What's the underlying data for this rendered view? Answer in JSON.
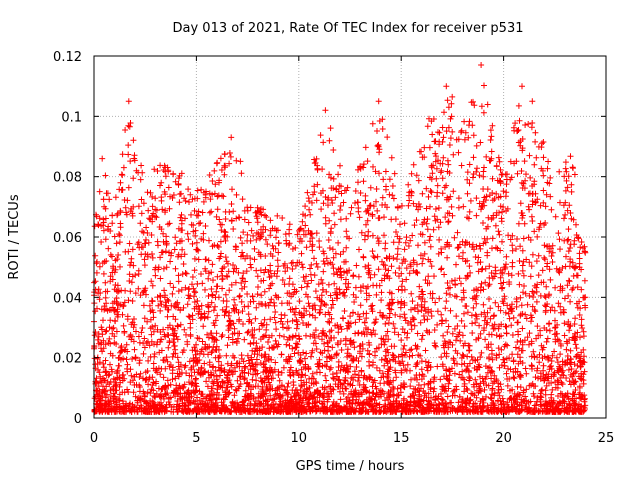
{
  "chart_data": {
    "type": "scatter",
    "title": "Day 013 of 2021, Rate Of TEC Index for receiver p531",
    "xlabel": "GPS time / hours",
    "ylabel": "ROTI / TECUs",
    "xlim": [
      0,
      25
    ],
    "ylim": [
      0,
      0.12
    ],
    "x_ticks": [
      "0",
      "5",
      "10",
      "15",
      "20",
      "25"
    ],
    "y_ticks": [
      "0",
      "0.02",
      "0.04",
      "0.06",
      "0.08",
      "0.1",
      "0.12"
    ],
    "grid": true,
    "marker": "+",
    "series_color": "#ff0000",
    "x_data_range": [
      0,
      24
    ],
    "typical_envelope": [
      {
        "x": 0,
        "y": 0.066
      },
      {
        "x": 0.5,
        "y": 0.085
      },
      {
        "x": 1.0,
        "y": 0.07
      },
      {
        "x": 1.7,
        "y": 0.105
      },
      {
        "x": 2.5,
        "y": 0.08
      },
      {
        "x": 3.5,
        "y": 0.088
      },
      {
        "x": 5.0,
        "y": 0.075
      },
      {
        "x": 6.7,
        "y": 0.093
      },
      {
        "x": 8.0,
        "y": 0.07
      },
      {
        "x": 10.0,
        "y": 0.065
      },
      {
        "x": 11.3,
        "y": 0.102
      },
      {
        "x": 12.5,
        "y": 0.075
      },
      {
        "x": 13.9,
        "y": 0.105
      },
      {
        "x": 15.0,
        "y": 0.075
      },
      {
        "x": 16.4,
        "y": 0.1
      },
      {
        "x": 17.2,
        "y": 0.11
      },
      {
        "x": 18.1,
        "y": 0.1
      },
      {
        "x": 18.9,
        "y": 0.117
      },
      {
        "x": 20.0,
        "y": 0.08
      },
      {
        "x": 20.9,
        "y": 0.11
      },
      {
        "x": 21.4,
        "y": 0.105
      },
      {
        "x": 22.5,
        "y": 0.08
      },
      {
        "x": 23.3,
        "y": 0.09
      },
      {
        "x": 24.0,
        "y": 0.055
      }
    ],
    "notable_points": [
      {
        "x": 18.9,
        "y": 0.117
      },
      {
        "x": 17.2,
        "y": 0.11
      },
      {
        "x": 20.9,
        "y": 0.11
      },
      {
        "x": 1.7,
        "y": 0.105
      },
      {
        "x": 13.9,
        "y": 0.105
      },
      {
        "x": 21.4,
        "y": 0.105
      },
      {
        "x": 11.3,
        "y": 0.102
      },
      {
        "x": 6.7,
        "y": 0.093
      },
      {
        "x": 0.4,
        "y": 0.086
      }
    ]
  }
}
